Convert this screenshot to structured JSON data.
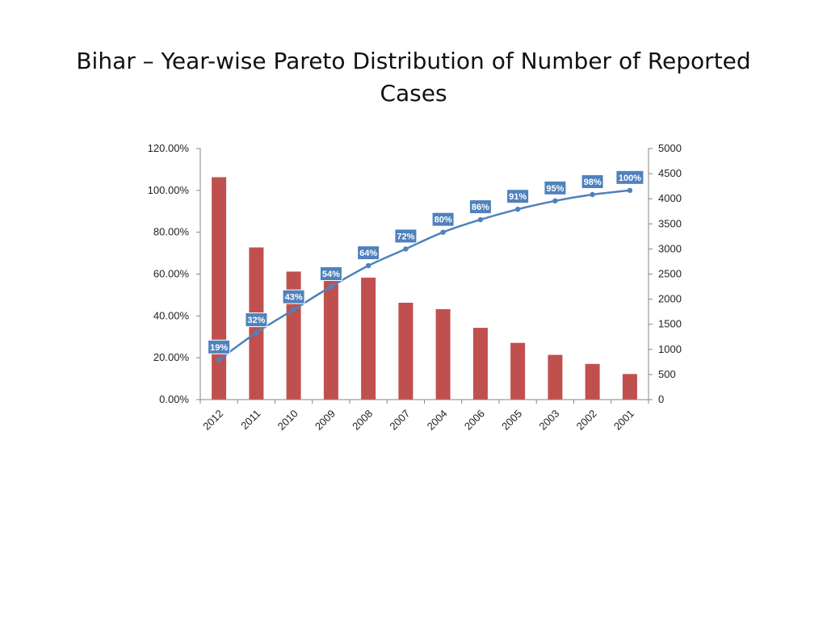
{
  "slide": {
    "title": "Bihar – Year-wise Pareto Distribution of Number of Reported Cases"
  },
  "chart_data": {
    "type": "bar",
    "categories": [
      "2012",
      "2011",
      "2010",
      "2009",
      "2008",
      "2007",
      "2004",
      "2006",
      "2005",
      "2003",
      "2002",
      "2001"
    ],
    "series": [
      {
        "type": "bar",
        "axis": "right",
        "values": [
          4430,
          3030,
          2550,
          2450,
          2430,
          1930,
          1800,
          1430,
          1130,
          890,
          710,
          510
        ],
        "color": "#C0504D"
      },
      {
        "type": "line",
        "axis": "left",
        "values": [
          19,
          32,
          43,
          54,
          64,
          72,
          80,
          86,
          91,
          95,
          98,
          100
        ],
        "data_labels": [
          "19%",
          "32%",
          "43%",
          "54%",
          "64%",
          "72%",
          "80%",
          "86%",
          "91%",
          "95%",
          "98%",
          "100%"
        ],
        "color": "#4F81BD"
      }
    ],
    "y_left": {
      "ylim": [
        0,
        120
      ],
      "ticks": [
        0,
        20,
        40,
        60,
        80,
        100,
        120
      ],
      "tick_labels": [
        "0.00%",
        "20.00%",
        "40.00%",
        "60.00%",
        "80.00%",
        "100.00%",
        "120.00%"
      ]
    },
    "y_right": {
      "ylim": [
        0,
        5000
      ],
      "ticks": [
        0,
        500,
        1000,
        1500,
        2000,
        2500,
        3000,
        3500,
        4000,
        4500,
        5000
      ],
      "tick_labels": [
        "0",
        "500",
        "1000",
        "1500",
        "2000",
        "2500",
        "3000",
        "3500",
        "4000",
        "4500",
        "5000"
      ]
    },
    "title": "",
    "xlabel": "",
    "ylabel": "",
    "grid": false,
    "legend": "none",
    "colors": {
      "axis": "#868686",
      "label_box": "#4F81BD"
    }
  }
}
